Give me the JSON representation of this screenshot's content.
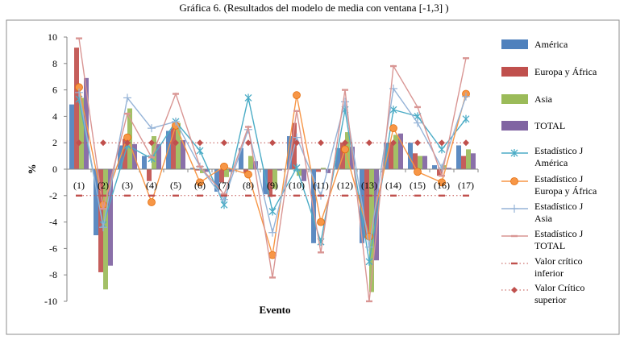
{
  "page_title": "Gráfica 6. (Resultados del modelo de media con ventana [-1,3] )",
  "chart_data": {
    "type": "bar",
    "title": "Gráfica 6. (Resultados del modelo de media con ventana [-1,3] )",
    "xlabel": "Evento",
    "ylabel": "%",
    "ylim": [
      -10,
      10
    ],
    "yticks": [
      -10,
      -8,
      -6,
      -4,
      -2,
      0,
      2,
      4,
      6,
      8,
      10
    ],
    "grid": false,
    "legend_position": "right",
    "categories": [
      "(1)",
      "(2)",
      "(3)",
      "(4)",
      "(5)",
      "(6)",
      "(7)",
      "(8)",
      "(9)",
      "(10)",
      "(11)",
      "(12)",
      "(13)",
      "(14)",
      "(15)",
      "(16)",
      "(17)"
    ],
    "series": [
      {
        "name": "América",
        "kind": "bar",
        "color": "#4f81bd",
        "values": [
          4.9,
          -5.0,
          1.8,
          1.0,
          2.9,
          0.1,
          -1.7,
          1.6,
          -1.9,
          2.5,
          -5.6,
          1.6,
          -5.6,
          2.0,
          2.0,
          0.3,
          1.8
        ]
      },
      {
        "name": "Europa y África",
        "kind": "bar",
        "color": "#c0504d",
        "values": [
          9.2,
          -7.8,
          2.3,
          -0.9,
          3.1,
          -0.1,
          -1.0,
          -0.3,
          -2.1,
          3.5,
          -0.2,
          2.0,
          -5.2,
          2.0,
          1.2,
          -0.5,
          1.0
        ]
      },
      {
        "name": "Asia",
        "kind": "bar",
        "color": "#9bbb59",
        "values": [
          5.4,
          -9.1,
          4.6,
          2.5,
          3.5,
          -0.3,
          -0.6,
          1.0,
          -1.5,
          -0.5,
          0.1,
          2.8,
          -9.3,
          2.6,
          1.0,
          0.3,
          1.5
        ]
      },
      {
        "name": "TOTAL",
        "kind": "bar",
        "color": "#8064a2",
        "values": [
          6.9,
          -7.3,
          1.9,
          1.9,
          2.2,
          -0.2,
          -0.2,
          0.6,
          -0.1,
          -0.9,
          -0.3,
          1.7,
          -6.9,
          2.7,
          1.0,
          0.1,
          1.2
        ]
      },
      {
        "name": "Estadístico J América",
        "kind": "line",
        "color": "#4bacc6",
        "marker": "star",
        "values": [
          5.3,
          -4.2,
          1.8,
          0.8,
          3.6,
          1.4,
          -2.7,
          5.4,
          -3.2,
          0.1,
          -5.5,
          4.5,
          -7.0,
          4.5,
          4.0,
          1.5,
          3.8
        ]
      },
      {
        "name": "Estadístico J Europa y África",
        "kind": "line",
        "color": "#f79646",
        "marker": "circle",
        "values": [
          6.2,
          -2.7,
          2.4,
          -2.5,
          3.3,
          -1.0,
          0.2,
          -0.4,
          -6.5,
          5.6,
          -4.0,
          1.5,
          -5.1,
          3.1,
          -0.2,
          -1.0,
          5.7
        ]
      },
      {
        "name": "Estadístico J Asia",
        "kind": "line",
        "color": "#95b3d7",
        "marker": "plus",
        "values": [
          5.8,
          -4.4,
          5.4,
          3.1,
          3.6,
          0.2,
          -2.3,
          3.0,
          -4.8,
          2.4,
          -2.0,
          5.1,
          -5.9,
          6.1,
          3.5,
          0.1,
          5.5
        ]
      },
      {
        "name": "Estadístico J TOTAL",
        "kind": "line",
        "color": "#d99694",
        "marker": "dash",
        "values": [
          9.9,
          -3.0,
          4.2,
          0.9,
          5.7,
          0.2,
          -1.9,
          3.2,
          -8.2,
          4.4,
          -6.3,
          6.0,
          -10.0,
          7.8,
          4.7,
          -0.5,
          8.4
        ]
      },
      {
        "name": "Valor crítico inferior",
        "kind": "line",
        "color": "#c0504d",
        "marker": "dash",
        "values": [
          -2,
          -2,
          -2,
          -2,
          -2,
          -2,
          -2,
          -2,
          -2,
          -2,
          -2,
          -2,
          -2,
          -2,
          -2,
          -2,
          -2
        ]
      },
      {
        "name": "Valor Crítico superior",
        "kind": "line",
        "color": "#c0504d",
        "marker": "diamond",
        "values": [
          2,
          2,
          2,
          2,
          2,
          2,
          2,
          2,
          2,
          2,
          2,
          2,
          2,
          2,
          2,
          2,
          2
        ]
      }
    ]
  }
}
